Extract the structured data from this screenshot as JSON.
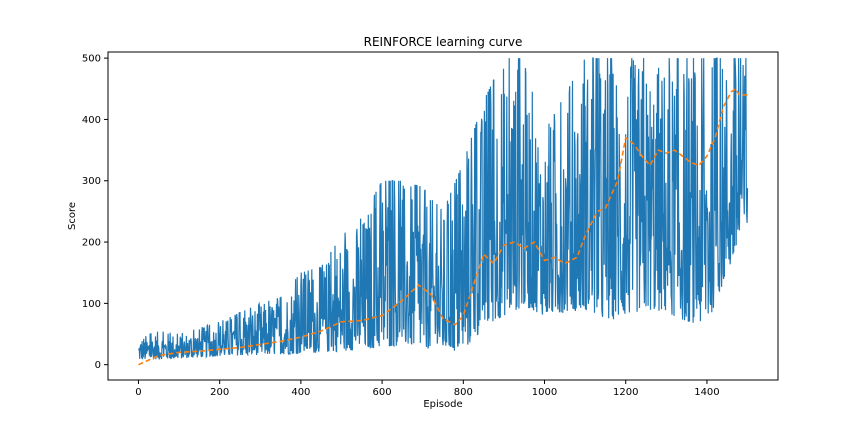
{
  "chart_data": {
    "type": "line",
    "title": "REINFORCE learning curve",
    "xlabel": "Episode",
    "ylabel": "Score",
    "xlim": [
      -75,
      1575
    ],
    "ylim": [
      -25,
      510
    ],
    "xticks": [
      0,
      200,
      400,
      600,
      800,
      1000,
      1200,
      1400
    ],
    "yticks": [
      0,
      100,
      200,
      300,
      400,
      500
    ],
    "grid": false,
    "legend": "none",
    "series": [
      {
        "color": "#1f77b4",
        "style": "solid",
        "envelope": {
          "x": [
            0,
            50,
            100,
            150,
            200,
            250,
            300,
            350,
            400,
            450,
            500,
            550,
            600,
            650,
            700,
            750,
            800,
            850,
            900,
            950,
            1000,
            1050,
            1100,
            1150,
            1200,
            1250,
            1300,
            1350,
            1400,
            1450,
            1500
          ],
          "low": [
            8,
            9,
            10,
            12,
            14,
            15,
            16,
            17,
            18,
            20,
            22,
            25,
            28,
            32,
            28,
            22,
            22,
            60,
            80,
            95,
            80,
            85,
            90,
            70,
            80,
            90,
            85,
            70,
            65,
            150,
            215
          ],
          "high": [
            45,
            55,
            50,
            60,
            70,
            85,
            100,
            110,
            150,
            160,
            210,
            240,
            300,
            300,
            290,
            250,
            330,
            430,
            500,
            500,
            380,
            440,
            500,
            500,
            500,
            500,
            500,
            500,
            500,
            500,
            500
          ]
        }
      },
      {
        "color": "#ff7f0e",
        "style": "dashed",
        "x": [
          0,
          50,
          100,
          150,
          200,
          250,
          300,
          350,
          400,
          450,
          500,
          550,
          600,
          650,
          690,
          720,
          750,
          780,
          800,
          830,
          850,
          875,
          900,
          925,
          950,
          975,
          1000,
          1025,
          1050,
          1080,
          1100,
          1130,
          1150,
          1180,
          1200,
          1220,
          1240,
          1260,
          1280,
          1300,
          1320,
          1340,
          1360,
          1380,
          1400,
          1420,
          1440,
          1460,
          1470,
          1480,
          1500
        ],
        "y": [
          0,
          15,
          20,
          22,
          25,
          28,
          33,
          38,
          45,
          55,
          70,
          72,
          80,
          105,
          130,
          115,
          75,
          65,
          80,
          140,
          180,
          165,
          195,
          200,
          190,
          200,
          170,
          175,
          165,
          175,
          210,
          250,
          255,
          300,
          370,
          360,
          340,
          325,
          350,
          345,
          350,
          340,
          330,
          325,
          340,
          370,
          420,
          445,
          450,
          440,
          440
        ]
      }
    ]
  }
}
